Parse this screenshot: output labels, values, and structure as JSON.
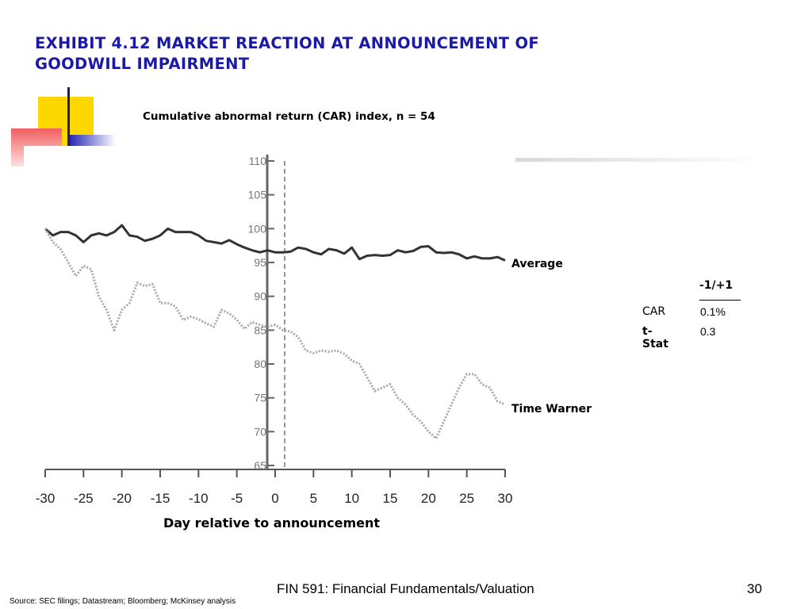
{
  "slide": {
    "title_line1": "EXHIBIT 4.12 MARKET REACTION AT ANNOUNCEMENT OF",
    "title_line2": "GOODWILL IMPAIRMENT",
    "footer": "FIN 591: Financial Fundamentals/Valuation",
    "page_number": "30",
    "source": "Source: SEC filings; Datastream; Bloomberg; McKinsey analysis",
    "colors": {
      "title": "#1a1aa6",
      "accent_yellow": "#ffd700",
      "accent_red": "#f06060",
      "accent_blue": "#2020b0"
    }
  },
  "chart_data": {
    "type": "line",
    "title": "Cumulative abnormal return (CAR) index, n = 54",
    "xlabel": "Day relative to announcement",
    "ylabel": "",
    "xlim": [
      -30,
      30
    ],
    "ylim": [
      65,
      110
    ],
    "x_ticks": [
      -30,
      -25,
      -20,
      -15,
      -10,
      -5,
      0,
      5,
      10,
      15,
      20,
      25,
      30
    ],
    "y_ticks": [
      65,
      70,
      75,
      80,
      85,
      90,
      95,
      100,
      105,
      110
    ],
    "series": [
      {
        "name": "Average",
        "style": "solid",
        "x": [
          -30,
          -29,
          -28,
          -27,
          -26,
          -25,
          -24,
          -23,
          -22,
          -21,
          -20,
          -19,
          -18,
          -17,
          -16,
          -15,
          -14,
          -13,
          -12,
          -11,
          -10,
          -9,
          -8,
          -7,
          -6,
          -5,
          -4,
          -3,
          -2,
          -1,
          0,
          1,
          2,
          3,
          4,
          5,
          6,
          7,
          8,
          9,
          10,
          11,
          12,
          13,
          14,
          15,
          16,
          17,
          18,
          19,
          20,
          21,
          22,
          23,
          24,
          25,
          26,
          27,
          28,
          29,
          30
        ],
        "values": [
          100,
          99,
          99.5,
          99.5,
          99,
          98,
          99,
          99.3,
          99,
          99.5,
          100.5,
          99,
          98.8,
          98.2,
          98.5,
          99,
          100,
          99.5,
          99.5,
          99.5,
          99,
          98.2,
          98,
          97.8,
          98.3,
          97.7,
          97.2,
          96.8,
          96.5,
          96.8,
          96.5,
          96.5,
          96.6,
          97.2,
          97,
          96.5,
          96.2,
          97,
          96.8,
          96.3,
          97.2,
          95.5,
          96,
          96.1,
          96,
          96.1,
          96.8,
          96.5,
          96.7,
          97.3,
          97.4,
          96.5,
          96.4,
          96.5,
          96.2,
          95.6,
          95.9,
          95.6,
          95.6,
          95.8,
          95.3
        ]
      },
      {
        "name": "Time Warner",
        "style": "dotted",
        "x": [
          -30,
          -29,
          -28,
          -27,
          -26,
          -25,
          -24,
          -23,
          -22,
          -21,
          -20,
          -19,
          -18,
          -17,
          -16,
          -15,
          -14,
          -13,
          -12,
          -11,
          -10,
          -9,
          -8,
          -7,
          -6,
          -5,
          -4,
          -3,
          -2,
          -1,
          0,
          1,
          2,
          3,
          4,
          5,
          6,
          7,
          8,
          9,
          10,
          11,
          12,
          13,
          14,
          15,
          16,
          17,
          18,
          19,
          20,
          21,
          22,
          23,
          24,
          25,
          26,
          27,
          28,
          29,
          30
        ],
        "values": [
          100,
          98,
          97,
          95,
          93,
          94.5,
          94,
          90,
          88,
          85,
          88,
          89,
          92,
          91.5,
          91.8,
          89,
          89,
          88.5,
          86.5,
          87,
          86.6,
          86,
          85.5,
          88,
          87.5,
          86.5,
          85.2,
          86.2,
          85.8,
          85.5,
          85.8,
          85,
          84.8,
          84,
          82,
          81.6,
          82,
          81.8,
          82,
          81.5,
          80.5,
          80,
          78,
          76,
          76.5,
          77,
          75,
          74,
          72.5,
          71.5,
          70,
          69,
          71.5,
          74,
          76.5,
          78.5,
          78.5,
          77,
          76.5,
          74.5,
          74
        ]
      }
    ],
    "legend_labels": [
      "Average",
      "Time Warner"
    ],
    "stats_table": {
      "column_header": "-1/+1",
      "rows": [
        {
          "label": "CAR",
          "value": "0.1%"
        },
        {
          "label": "t-Stat",
          "value": "0.3"
        }
      ]
    },
    "vertical_marker": {
      "at_x": 0,
      "style": "dashed"
    },
    "grid": false
  }
}
